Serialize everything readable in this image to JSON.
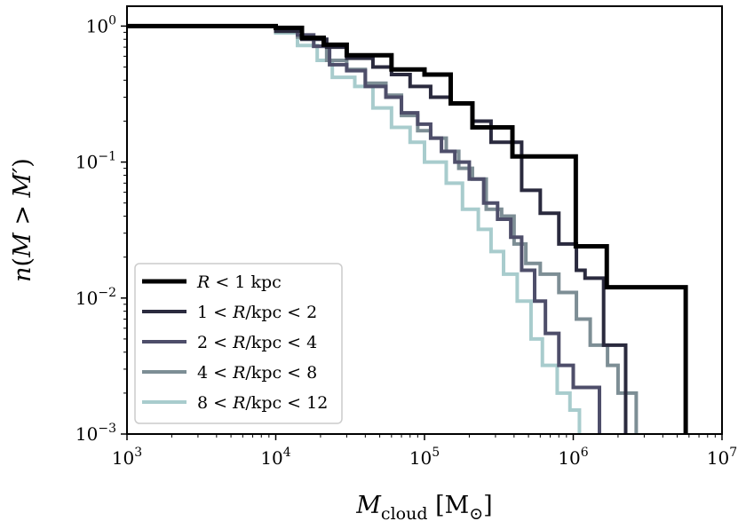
{
  "chart_data": {
    "type": "line",
    "subtype": "cumulative-step",
    "title": "",
    "xlabel": "M_cloud [M_⊙]",
    "ylabel": "n(M > M')",
    "xscale": "log",
    "yscale": "log",
    "xlim": [
      1000,
      10000000
    ],
    "ylim": [
      0.001,
      1.4
    ],
    "grid": false,
    "legend_location": "lower-left",
    "xticks": [
      {
        "value": 1000,
        "base": "10",
        "exp": "3"
      },
      {
        "value": 10000,
        "base": "10",
        "exp": "4"
      },
      {
        "value": 100000,
        "base": "10",
        "exp": "5"
      },
      {
        "value": 1000000,
        "base": "10",
        "exp": "6"
      },
      {
        "value": 10000000,
        "base": "10",
        "exp": "7"
      }
    ],
    "yticks": [
      {
        "value": 0.001,
        "base": "10",
        "exp": "−3"
      },
      {
        "value": 0.01,
        "base": "10",
        "exp": "−2"
      },
      {
        "value": 0.1,
        "base": "10",
        "exp": "−1"
      },
      {
        "value": 1,
        "base": "10",
        "exp": "0"
      }
    ],
    "series": [
      {
        "name": "R < 1 kpc",
        "label_parts": [
          "R",
          " < 1 kpc"
        ],
        "color": "#000000",
        "width": 5,
        "steps": [
          [
            1000,
            1.0
          ],
          [
            10000,
            0.97
          ],
          [
            15000,
            0.82
          ],
          [
            21000,
            0.73
          ],
          [
            30000,
            0.61
          ],
          [
            60000,
            0.48
          ],
          [
            100000,
            0.44
          ],
          [
            150000,
            0.27
          ],
          [
            210000,
            0.18
          ],
          [
            390000,
            0.11
          ],
          [
            700000,
            0.11
          ],
          [
            1040000,
            0.024
          ],
          [
            1680000,
            0.012
          ],
          [
            5700000,
            0.0012
          ]
        ]
      },
      {
        "name": "1 < R/kpc < 2",
        "label_parts": [
          "1 < ",
          "R",
          "/kpc < 2"
        ],
        "color": "#2a2a3e",
        "width": 4,
        "steps": [
          [
            1000,
            1.0
          ],
          [
            10000,
            0.92
          ],
          [
            15000,
            0.8
          ],
          [
            22000,
            0.7
          ],
          [
            30000,
            0.58
          ],
          [
            45000,
            0.5
          ],
          [
            60000,
            0.44
          ],
          [
            80000,
            0.36
          ],
          [
            110000,
            0.3
          ],
          [
            150000,
            0.27
          ],
          [
            210000,
            0.2
          ],
          [
            280000,
            0.14
          ],
          [
            450000,
            0.062
          ],
          [
            600000,
            0.042
          ],
          [
            800000,
            0.025
          ],
          [
            1050000,
            0.016
          ],
          [
            1200000,
            0.014
          ],
          [
            1600000,
            0.0045
          ],
          [
            1700000,
            0.0045
          ],
          [
            2250000,
            0.0012
          ]
        ]
      },
      {
        "name": "2 < R/kpc < 4",
        "label_parts": [
          "2 < ",
          "R",
          "/kpc < 4"
        ],
        "color": "#4e4e6a",
        "width": 4,
        "steps": [
          [
            1000,
            1.0
          ],
          [
            10000,
            0.94
          ],
          [
            14000,
            0.86
          ],
          [
            18000,
            0.71
          ],
          [
            23000,
            0.52
          ],
          [
            30000,
            0.47
          ],
          [
            40000,
            0.36
          ],
          [
            55000,
            0.3
          ],
          [
            70000,
            0.23
          ],
          [
            90000,
            0.19
          ],
          [
            110000,
            0.15
          ],
          [
            130000,
            0.12
          ],
          [
            160000,
            0.1
          ],
          [
            200000,
            0.075
          ],
          [
            250000,
            0.05
          ],
          [
            310000,
            0.038
          ],
          [
            380000,
            0.028
          ],
          [
            450000,
            0.016
          ],
          [
            550000,
            0.0095
          ],
          [
            650000,
            0.0055
          ],
          [
            800000,
            0.0032
          ],
          [
            1000000,
            0.0022
          ],
          [
            1500000,
            0.0012
          ]
        ]
      },
      {
        "name": "4 < R/kpc < 8",
        "label_parts": [
          "4 < ",
          "R",
          "/kpc < 8"
        ],
        "color": "#7d8e95",
        "width": 4,
        "steps": [
          [
            1000,
            1.0
          ],
          [
            10000,
            0.91
          ],
          [
            14000,
            0.83
          ],
          [
            18000,
            0.71
          ],
          [
            22000,
            0.56
          ],
          [
            30000,
            0.48
          ],
          [
            40000,
            0.38
          ],
          [
            55000,
            0.31
          ],
          [
            70000,
            0.22
          ],
          [
            90000,
            0.17
          ],
          [
            110000,
            0.15
          ],
          [
            140000,
            0.12
          ],
          [
            170000,
            0.09
          ],
          [
            210000,
            0.075
          ],
          [
            260000,
            0.045
          ],
          [
            330000,
            0.04
          ],
          [
            400000,
            0.025
          ],
          [
            480000,
            0.018
          ],
          [
            600000,
            0.015
          ],
          [
            800000,
            0.011
          ],
          [
            1050000,
            0.007
          ],
          [
            1300000,
            0.0045
          ],
          [
            1700000,
            0.0032
          ],
          [
            2000000,
            0.002
          ],
          [
            2650000,
            0.0012
          ]
        ]
      },
      {
        "name": "8 < R/kpc < 12",
        "label_parts": [
          "8 < ",
          "R",
          "/kpc < 12"
        ],
        "color": "#a8cccd",
        "width": 4,
        "steps": [
          [
            1000,
            1.0
          ],
          [
            10000,
            0.89
          ],
          [
            14000,
            0.72
          ],
          [
            19000,
            0.56
          ],
          [
            24000,
            0.42
          ],
          [
            34000,
            0.36
          ],
          [
            45000,
            0.25
          ],
          [
            60000,
            0.18
          ],
          [
            80000,
            0.14
          ],
          [
            100000,
            0.1
          ],
          [
            140000,
            0.07
          ],
          [
            180000,
            0.045
          ],
          [
            230000,
            0.032
          ],
          [
            280000,
            0.022
          ],
          [
            340000,
            0.015
          ],
          [
            420000,
            0.0095
          ],
          [
            520000,
            0.005
          ],
          [
            620000,
            0.0032
          ],
          [
            780000,
            0.002
          ],
          [
            950000,
            0.0015
          ],
          [
            1100000,
            0.0012
          ]
        ]
      }
    ]
  }
}
